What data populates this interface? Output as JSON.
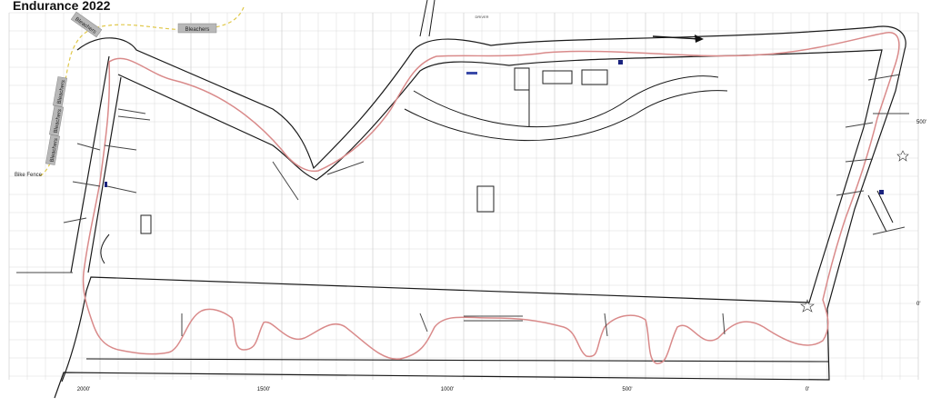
{
  "title": "Endurance 2022",
  "scale_x": [
    "2000'",
    "1500'",
    "1000'",
    "500'",
    "0'"
  ],
  "scale_y": [
    "500'",
    "0'"
  ],
  "labels": {
    "bleachers": "Bleachers",
    "bike_fence": "Bike Fence",
    "small_top": "DRIVER"
  },
  "colors": {
    "track": "#1a1a1a",
    "racing_line": "#d98a8a",
    "grid": "#c8c8c8",
    "fence": "#e0c84a",
    "cone": "#444444",
    "marker": "#3a4aa8"
  }
}
